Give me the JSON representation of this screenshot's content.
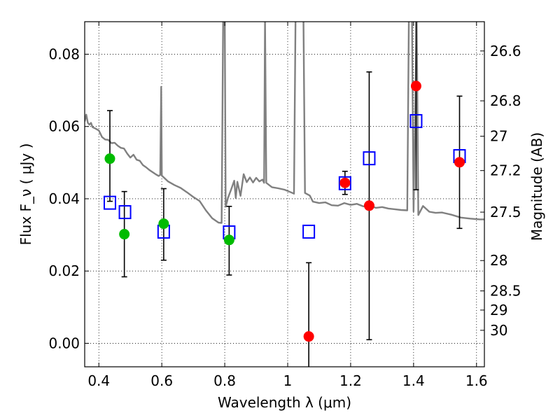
{
  "chart_data": {
    "type": "scatter",
    "xlabel": "Wavelength  λ (μm)",
    "ylabel": "Flux  F_ν  ( μJy )",
    "ylabel_right": "Magnitude (AB)",
    "xlim": [
      0.355,
      1.625
    ],
    "ylim": [
      -0.0065,
      0.089
    ],
    "grid": true,
    "x_ticks": [
      {
        "value": 0.4,
        "label": "0.4"
      },
      {
        "value": 0.6,
        "label": "0.6"
      },
      {
        "value": 0.8,
        "label": "0.8"
      },
      {
        "value": 1.0,
        "label": "1"
      },
      {
        "value": 1.2,
        "label": "1.2"
      },
      {
        "value": 1.4,
        "label": "1.4"
      },
      {
        "value": 1.6,
        "label": "1.6"
      }
    ],
    "y_ticks": [
      {
        "value": 0.0,
        "label": "0.00"
      },
      {
        "value": 0.02,
        "label": "0.02"
      },
      {
        "value": 0.04,
        "label": "0.04"
      },
      {
        "value": 0.06,
        "label": "0.06"
      },
      {
        "value": 0.08,
        "label": "0.08"
      }
    ],
    "mag_ticks": [
      {
        "flux": 0.0809,
        "label": "26.6"
      },
      {
        "flux": 0.0671,
        "label": "26.8"
      },
      {
        "flux": 0.0573,
        "label": "27"
      },
      {
        "flux": 0.0478,
        "label": "27.2"
      },
      {
        "flux": 0.0363,
        "label": "27.5"
      },
      {
        "flux": 0.0229,
        "label": "28"
      },
      {
        "flux": 0.0145,
        "label": "28.5"
      },
      {
        "flux": 0.0092,
        "label": "29"
      },
      {
        "flux": 0.0036,
        "label": "30"
      }
    ],
    "series": [
      {
        "marker": "square-open",
        "color": "#0000ff",
        "points": [
          {
            "x": 0.435,
            "y": 0.0389
          },
          {
            "x": 0.483,
            "y": 0.0363
          },
          {
            "x": 0.606,
            "y": 0.0309
          },
          {
            "x": 0.814,
            "y": 0.0307
          },
          {
            "x": 1.067,
            "y": 0.0309
          },
          {
            "x": 1.182,
            "y": 0.0443
          },
          {
            "x": 1.259,
            "y": 0.0512
          },
          {
            "x": 1.408,
            "y": 0.0615
          },
          {
            "x": 1.546,
            "y": 0.0518
          }
        ]
      },
      {
        "marker": "circle",
        "color": "#00bb00",
        "points": [
          {
            "x": 0.435,
            "y": 0.0511,
            "yerr": [
              0.0118,
              0.0133
            ]
          },
          {
            "x": 0.481,
            "y": 0.0302,
            "yerr": [
              0.0118,
              0.0118
            ]
          },
          {
            "x": 0.606,
            "y": 0.0331,
            "yerr": [
              0.0101,
              0.0097
            ]
          },
          {
            "x": 0.814,
            "y": 0.0286,
            "yerr": [
              0.0097,
              0.0093
            ]
          }
        ]
      },
      {
        "marker": "circle",
        "color": "#ff0000",
        "points": [
          {
            "x": 1.067,
            "y": 0.0019,
            "yerr": [
              0.0094,
              0.0204
            ]
          },
          {
            "x": 1.182,
            "y": 0.0444,
            "yerr": [
              0.0032,
              0.0032
            ]
          },
          {
            "x": 1.259,
            "y": 0.0381,
            "yerr": [
              0.0371,
              0.037
            ]
          },
          {
            "x": 1.408,
            "y": 0.0712,
            "yerr": [
              0.0287,
              0.0248
            ]
          },
          {
            "x": 1.546,
            "y": 0.0501,
            "yerr": [
              0.0183,
              0.0183
            ]
          }
        ]
      }
    ],
    "model_spectrum": {
      "color": "#808080",
      "points": [
        [
          0.355,
          0.0614
        ],
        [
          0.36,
          0.0633
        ],
        [
          0.365,
          0.061
        ],
        [
          0.37,
          0.0605
        ],
        [
          0.375,
          0.061
        ],
        [
          0.38,
          0.0598
        ],
        [
          0.39,
          0.0594
        ],
        [
          0.4,
          0.0589
        ],
        [
          0.41,
          0.0571
        ],
        [
          0.42,
          0.0564
        ],
        [
          0.43,
          0.0563
        ],
        [
          0.44,
          0.0554
        ],
        [
          0.45,
          0.0555
        ],
        [
          0.46,
          0.0547
        ],
        [
          0.47,
          0.0541
        ],
        [
          0.48,
          0.0539
        ],
        [
          0.49,
          0.0525
        ],
        [
          0.5,
          0.0514
        ],
        [
          0.51,
          0.0522
        ],
        [
          0.52,
          0.0508
        ],
        [
          0.53,
          0.0505
        ],
        [
          0.54,
          0.0493
        ],
        [
          0.55,
          0.0487
        ],
        [
          0.56,
          0.048
        ],
        [
          0.57,
          0.0474
        ],
        [
          0.58,
          0.0468
        ],
        [
          0.59,
          0.0463
        ],
        [
          0.595,
          0.0466
        ],
        [
          0.598,
          0.071
        ],
        [
          0.6,
          0.0464
        ],
        [
          0.62,
          0.0448
        ],
        [
          0.64,
          0.0438
        ],
        [
          0.66,
          0.043
        ],
        [
          0.68,
          0.0418
        ],
        [
          0.7,
          0.0405
        ],
        [
          0.72,
          0.0394
        ],
        [
          0.74,
          0.0368
        ],
        [
          0.76,
          0.0346
        ],
        [
          0.78,
          0.0334
        ],
        [
          0.79,
          0.0333
        ],
        [
          0.795,
          0.09
        ],
        [
          0.8,
          0.09
        ],
        [
          0.803,
          0.0378
        ],
        [
          0.81,
          0.0402
        ],
        [
          0.82,
          0.0425
        ],
        [
          0.83,
          0.045
        ],
        [
          0.835,
          0.0402
        ],
        [
          0.84,
          0.0447
        ],
        [
          0.85,
          0.0408
        ],
        [
          0.86,
          0.0468
        ],
        [
          0.87,
          0.0446
        ],
        [
          0.88,
          0.0459
        ],
        [
          0.89,
          0.0445
        ],
        [
          0.9,
          0.0458
        ],
        [
          0.91,
          0.0448
        ],
        [
          0.92,
          0.0453
        ],
        [
          0.925,
          0.0444
        ],
        [
          0.928,
          0.09
        ],
        [
          0.932,
          0.0444
        ],
        [
          0.95,
          0.0432
        ],
        [
          0.97,
          0.0429
        ],
        [
          0.99,
          0.0425
        ],
        [
          1.01,
          0.0418
        ],
        [
          1.02,
          0.0414
        ],
        [
          1.025,
          0.09
        ],
        [
          1.05,
          0.09
        ],
        [
          1.055,
          0.0416
        ],
        [
          1.07,
          0.0409
        ],
        [
          1.08,
          0.0392
        ],
        [
          1.1,
          0.0388
        ],
        [
          1.12,
          0.039
        ],
        [
          1.14,
          0.0382
        ],
        [
          1.16,
          0.0381
        ],
        [
          1.18,
          0.0388
        ],
        [
          1.2,
          0.0383
        ],
        [
          1.22,
          0.0386
        ],
        [
          1.24,
          0.0379
        ],
        [
          1.26,
          0.0381
        ],
        [
          1.28,
          0.0375
        ],
        [
          1.3,
          0.0377
        ],
        [
          1.32,
          0.0373
        ],
        [
          1.34,
          0.0371
        ],
        [
          1.36,
          0.0369
        ],
        [
          1.38,
          0.0368
        ],
        [
          1.385,
          0.09
        ],
        [
          1.395,
          0.09
        ],
        [
          1.4,
          0.0365
        ],
        [
          1.41,
          0.09
        ],
        [
          1.415,
          0.0355
        ],
        [
          1.43,
          0.038
        ],
        [
          1.45,
          0.0364
        ],
        [
          1.47,
          0.0361
        ],
        [
          1.49,
          0.0362
        ],
        [
          1.52,
          0.0356
        ],
        [
          1.55,
          0.0348
        ],
        [
          1.58,
          0.0345
        ],
        [
          1.61,
          0.0343
        ],
        [
          1.625,
          0.0343
        ]
      ]
    }
  }
}
